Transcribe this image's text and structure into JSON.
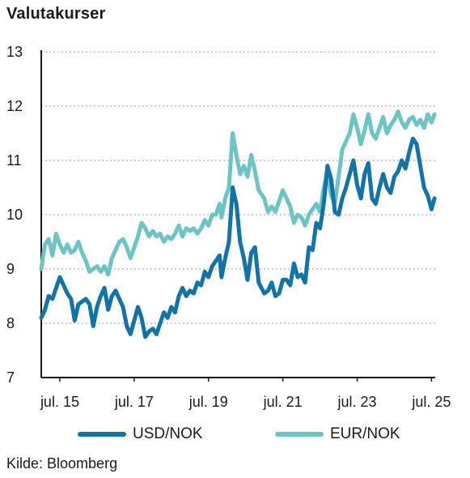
{
  "title": "Valutakurser",
  "source": "Kilde: Bloomberg",
  "colors": {
    "usd": "#1173a8",
    "eur": "#6cc4c4",
    "grid": "#9a9a9a",
    "axis": "#1a1a1a"
  },
  "chart_data": {
    "type": "line",
    "title": "Valutakurser",
    "xlabel": "",
    "ylabel": "",
    "ylim": [
      7,
      13
    ],
    "yticks": [
      7,
      8,
      9,
      10,
      11,
      12,
      13
    ],
    "xlim": [
      2015.0,
      2025.6
    ],
    "xticks": [
      {
        "label": "jul. 15",
        "x": 2015.5
      },
      {
        "label": "jul. 17",
        "x": 2017.5
      },
      {
        "label": "jul. 19",
        "x": 2019.5
      },
      {
        "label": "jul. 21",
        "x": 2021.5
      },
      {
        "label": "jul. 23",
        "x": 2023.5
      },
      {
        "label": "jul. 25",
        "x": 2025.5
      }
    ],
    "grid": "horizontal dotted",
    "legend_position": "bottom",
    "series": [
      {
        "name": "USD/NOK",
        "color": "#1173a8",
        "points": [
          [
            2015.0,
            8.1
          ],
          [
            2015.1,
            8.25
          ],
          [
            2015.2,
            8.5
          ],
          [
            2015.3,
            8.45
          ],
          [
            2015.4,
            8.65
          ],
          [
            2015.5,
            8.85
          ],
          [
            2015.6,
            8.7
          ],
          [
            2015.7,
            8.55
          ],
          [
            2015.8,
            8.45
          ],
          [
            2015.9,
            8.05
          ],
          [
            2016.0,
            8.35
          ],
          [
            2016.1,
            8.4
          ],
          [
            2016.2,
            8.45
          ],
          [
            2016.3,
            8.35
          ],
          [
            2016.4,
            7.95
          ],
          [
            2016.5,
            8.3
          ],
          [
            2016.6,
            8.5
          ],
          [
            2016.7,
            8.65
          ],
          [
            2016.8,
            8.25
          ],
          [
            2016.9,
            8.5
          ],
          [
            2017.0,
            8.6
          ],
          [
            2017.1,
            8.45
          ],
          [
            2017.2,
            8.3
          ],
          [
            2017.3,
            7.95
          ],
          [
            2017.4,
            7.8
          ],
          [
            2017.5,
            8.05
          ],
          [
            2017.6,
            8.3
          ],
          [
            2017.7,
            8.1
          ],
          [
            2017.8,
            7.75
          ],
          [
            2017.9,
            7.85
          ],
          [
            2018.0,
            7.9
          ],
          [
            2018.1,
            7.8
          ],
          [
            2018.2,
            8.0
          ],
          [
            2018.3,
            8.2
          ],
          [
            2018.4,
            8.1
          ],
          [
            2018.5,
            8.3
          ],
          [
            2018.6,
            8.2
          ],
          [
            2018.7,
            8.5
          ],
          [
            2018.8,
            8.65
          ],
          [
            2018.9,
            8.5
          ],
          [
            2019.0,
            8.6
          ],
          [
            2019.1,
            8.55
          ],
          [
            2019.2,
            8.75
          ],
          [
            2019.3,
            8.7
          ],
          [
            2019.4,
            8.95
          ],
          [
            2019.5,
            8.85
          ],
          [
            2019.6,
            9.05
          ],
          [
            2019.7,
            9.15
          ],
          [
            2019.8,
            9.25
          ],
          [
            2019.85,
            8.85
          ],
          [
            2019.95,
            9.2
          ],
          [
            2020.05,
            9.5
          ],
          [
            2020.15,
            10.5
          ],
          [
            2020.25,
            10.2
          ],
          [
            2020.35,
            9.5
          ],
          [
            2020.45,
            9.2
          ],
          [
            2020.55,
            8.8
          ],
          [
            2020.65,
            9.3
          ],
          [
            2020.75,
            9.4
          ],
          [
            2020.85,
            8.75
          ],
          [
            2021.0,
            8.55
          ],
          [
            2021.1,
            8.6
          ],
          [
            2021.2,
            8.75
          ],
          [
            2021.3,
            8.5
          ],
          [
            2021.4,
            8.55
          ],
          [
            2021.5,
            8.8
          ],
          [
            2021.6,
            8.8
          ],
          [
            2021.7,
            8.7
          ],
          [
            2021.8,
            9.1
          ],
          [
            2021.9,
            8.85
          ],
          [
            2022.0,
            8.9
          ],
          [
            2022.1,
            8.75
          ],
          [
            2022.2,
            9.4
          ],
          [
            2022.3,
            9.35
          ],
          [
            2022.4,
            9.85
          ],
          [
            2022.5,
            9.75
          ],
          [
            2022.6,
            10.2
          ],
          [
            2022.7,
            10.9
          ],
          [
            2022.8,
            10.65
          ],
          [
            2022.9,
            10.05
          ],
          [
            2023.0,
            10.0
          ],
          [
            2023.1,
            10.3
          ],
          [
            2023.2,
            10.5
          ],
          [
            2023.3,
            10.75
          ],
          [
            2023.4,
            11.0
          ],
          [
            2023.5,
            10.55
          ],
          [
            2023.6,
            10.3
          ],
          [
            2023.7,
            10.75
          ],
          [
            2023.8,
            10.95
          ],
          [
            2023.9,
            10.3
          ],
          [
            2024.0,
            10.2
          ],
          [
            2024.1,
            10.5
          ],
          [
            2024.2,
            10.75
          ],
          [
            2024.3,
            10.5
          ],
          [
            2024.4,
            10.4
          ],
          [
            2024.5,
            10.7
          ],
          [
            2024.6,
            10.8
          ],
          [
            2024.7,
            11.0
          ],
          [
            2024.8,
            10.85
          ],
          [
            2024.9,
            11.15
          ],
          [
            2025.0,
            11.4
          ],
          [
            2025.1,
            11.3
          ],
          [
            2025.2,
            10.9
          ],
          [
            2025.3,
            10.5
          ],
          [
            2025.4,
            10.35
          ],
          [
            2025.5,
            10.1
          ],
          [
            2025.58,
            10.3
          ]
        ]
      },
      {
        "name": "EUR/NOK",
        "color": "#6cc4c4",
        "points": [
          [
            2015.0,
            9.0
          ],
          [
            2015.1,
            9.45
          ],
          [
            2015.2,
            9.55
          ],
          [
            2015.3,
            9.25
          ],
          [
            2015.4,
            9.65
          ],
          [
            2015.5,
            9.45
          ],
          [
            2015.6,
            9.3
          ],
          [
            2015.7,
            9.45
          ],
          [
            2015.8,
            9.3
          ],
          [
            2015.9,
            9.35
          ],
          [
            2016.0,
            9.5
          ],
          [
            2016.1,
            9.3
          ],
          [
            2016.2,
            9.15
          ],
          [
            2016.3,
            8.95
          ],
          [
            2016.4,
            9.0
          ],
          [
            2016.5,
            9.05
          ],
          [
            2016.6,
            8.95
          ],
          [
            2016.7,
            9.05
          ],
          [
            2016.8,
            8.9
          ],
          [
            2016.9,
            9.2
          ],
          [
            2017.0,
            9.35
          ],
          [
            2017.1,
            9.5
          ],
          [
            2017.2,
            9.55
          ],
          [
            2017.3,
            9.4
          ],
          [
            2017.4,
            9.2
          ],
          [
            2017.5,
            9.4
          ],
          [
            2017.6,
            9.6
          ],
          [
            2017.7,
            9.85
          ],
          [
            2017.8,
            9.75
          ],
          [
            2017.9,
            9.6
          ],
          [
            2018.0,
            9.7
          ],
          [
            2018.1,
            9.6
          ],
          [
            2018.2,
            9.65
          ],
          [
            2018.3,
            9.5
          ],
          [
            2018.4,
            9.6
          ],
          [
            2018.5,
            9.55
          ],
          [
            2018.6,
            9.65
          ],
          [
            2018.7,
            9.8
          ],
          [
            2018.8,
            9.6
          ],
          [
            2018.9,
            9.75
          ],
          [
            2019.0,
            9.7
          ],
          [
            2019.1,
            9.75
          ],
          [
            2019.2,
            9.65
          ],
          [
            2019.3,
            9.75
          ],
          [
            2019.4,
            9.9
          ],
          [
            2019.5,
            9.8
          ],
          [
            2019.6,
            10.0
          ],
          [
            2019.7,
            10.0
          ],
          [
            2019.8,
            10.2
          ],
          [
            2019.85,
            9.95
          ],
          [
            2019.95,
            10.3
          ],
          [
            2020.05,
            10.5
          ],
          [
            2020.15,
            11.5
          ],
          [
            2020.25,
            11.1
          ],
          [
            2020.35,
            10.75
          ],
          [
            2020.45,
            10.9
          ],
          [
            2020.55,
            10.7
          ],
          [
            2020.65,
            11.1
          ],
          [
            2020.75,
            10.8
          ],
          [
            2020.85,
            10.45
          ],
          [
            2021.0,
            10.3
          ],
          [
            2021.1,
            10.05
          ],
          [
            2021.2,
            10.15
          ],
          [
            2021.3,
            10.05
          ],
          [
            2021.4,
            10.25
          ],
          [
            2021.5,
            10.45
          ],
          [
            2021.6,
            10.3
          ],
          [
            2021.7,
            10.15
          ],
          [
            2021.8,
            9.85
          ],
          [
            2021.9,
            10.0
          ],
          [
            2022.0,
            9.95
          ],
          [
            2022.1,
            9.8
          ],
          [
            2022.2,
            10.0
          ],
          [
            2022.3,
            10.1
          ],
          [
            2022.4,
            10.2
          ],
          [
            2022.5,
            10.05
          ],
          [
            2022.6,
            10.5
          ],
          [
            2022.7,
            10.8
          ],
          [
            2022.8,
            10.35
          ],
          [
            2022.9,
            10.2
          ],
          [
            2023.0,
            10.7
          ],
          [
            2023.1,
            11.2
          ],
          [
            2023.2,
            11.35
          ],
          [
            2023.3,
            11.5
          ],
          [
            2023.4,
            11.85
          ],
          [
            2023.5,
            11.6
          ],
          [
            2023.6,
            11.3
          ],
          [
            2023.7,
            11.55
          ],
          [
            2023.8,
            11.85
          ],
          [
            2023.9,
            11.5
          ],
          [
            2024.0,
            11.4
          ],
          [
            2024.1,
            11.6
          ],
          [
            2024.2,
            11.8
          ],
          [
            2024.3,
            11.5
          ],
          [
            2024.4,
            11.65
          ],
          [
            2024.5,
            11.75
          ],
          [
            2024.6,
            11.9
          ],
          [
            2024.7,
            11.7
          ],
          [
            2024.8,
            11.6
          ],
          [
            2024.9,
            11.75
          ],
          [
            2025.0,
            11.8
          ],
          [
            2025.1,
            11.65
          ],
          [
            2025.2,
            11.75
          ],
          [
            2025.3,
            11.6
          ],
          [
            2025.4,
            11.85
          ],
          [
            2025.5,
            11.7
          ],
          [
            2025.58,
            11.85
          ]
        ]
      }
    ]
  }
}
